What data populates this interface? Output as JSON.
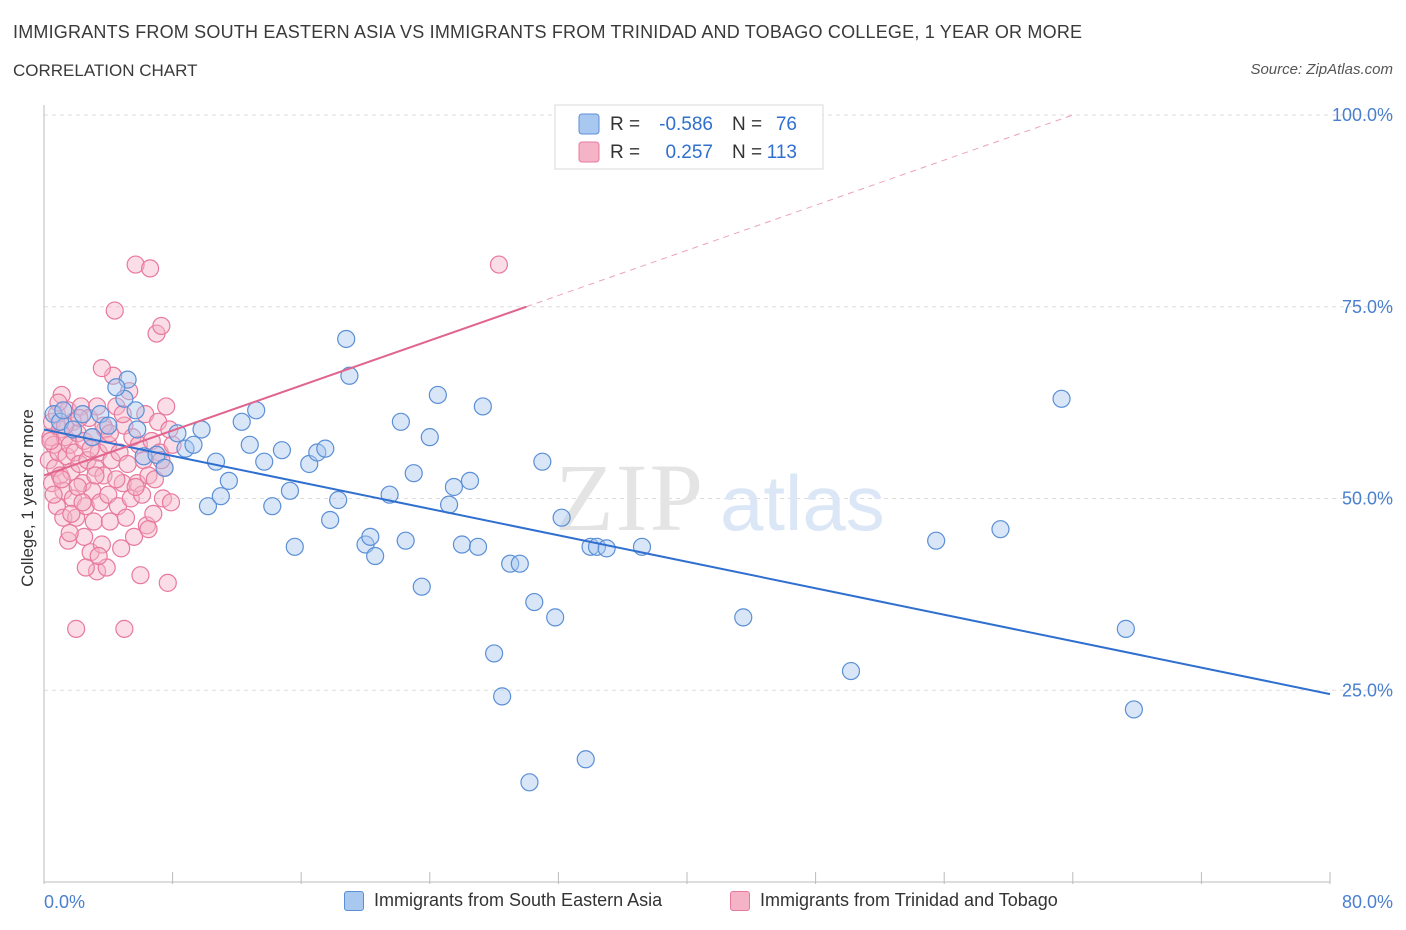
{
  "header": {
    "title": "IMMIGRANTS FROM SOUTH EASTERN ASIA VS IMMIGRANTS FROM TRINIDAD AND TOBAGO COLLEGE, 1 YEAR OR MORE",
    "subtitle": "CORRELATION CHART",
    "source": "Source: ZipAtlas.com"
  },
  "watermark": {
    "zip": "ZIP",
    "atlas": "atlas"
  },
  "colors": {
    "blue_fill": "#a9c8f0",
    "blue_stroke": "#5b8fd6",
    "blue_line": "#2f6fcf",
    "pink_fill": "#f5b3c8",
    "pink_stroke": "#e8799d",
    "pink_line": "#e0648e",
    "axis_text": "#4a7fcf",
    "grid": "#dddddd"
  },
  "chart_data": {
    "type": "scatter",
    "title": "IMMIGRANTS FROM SOUTH EASTERN ASIA VS IMMIGRANTS FROM TRINIDAD AND TOBAGO COLLEGE, 1 YEAR OR MORE",
    "xlabel": "",
    "ylabel": "College, 1 year or more",
    "xlim": [
      0,
      80
    ],
    "ylim": [
      0,
      100
    ],
    "x_tick_labels": [
      "0.0%",
      "80.0%"
    ],
    "y_ticks": [
      25,
      50,
      75,
      100
    ],
    "y_tick_labels": [
      "25.0%",
      "50.0%",
      "75.0%",
      "100.0%"
    ],
    "grid": true,
    "legend": {
      "position": "top-center",
      "entries": [
        {
          "r_label": "R =",
          "r_value": "-0.586",
          "n_label": "N =",
          "n_value": "76"
        },
        {
          "r_label": "R =",
          "r_value": "0.257",
          "n_label": "N =",
          "n_value": "113"
        }
      ]
    },
    "series": [
      {
        "name": "Immigrants from South Eastern Asia",
        "color": "#a9c8f0",
        "trend": {
          "x": [
            0,
            80
          ],
          "y": [
            59,
            24.5
          ]
        },
        "points": [
          [
            0.6,
            61
          ],
          [
            1,
            60
          ],
          [
            1.2,
            61.5
          ],
          [
            1.8,
            59
          ],
          [
            2.4,
            61
          ],
          [
            3,
            58
          ],
          [
            3.5,
            61
          ],
          [
            4,
            59.5
          ],
          [
            5,
            63
          ],
          [
            5.2,
            65.5
          ],
          [
            5.7,
            61.5
          ],
          [
            5.8,
            59
          ],
          [
            6.2,
            55.5
          ],
          [
            7,
            55.7
          ],
          [
            7.5,
            54
          ],
          [
            8.3,
            58.5
          ],
          [
            8.8,
            56.5
          ],
          [
            9.3,
            57
          ],
          [
            9.8,
            59
          ],
          [
            10.2,
            49
          ],
          [
            10.7,
            54.8
          ],
          [
            11,
            50.3
          ],
          [
            11.5,
            52.3
          ],
          [
            12.3,
            60
          ],
          [
            12.8,
            57
          ],
          [
            13.2,
            61.5
          ],
          [
            13.7,
            54.8
          ],
          [
            14.2,
            49
          ],
          [
            14.8,
            56.3
          ],
          [
            15.3,
            51
          ],
          [
            15.6,
            43.7
          ],
          [
            16.5,
            54.5
          ],
          [
            17,
            56
          ],
          [
            17.5,
            56.5
          ],
          [
            17.8,
            47.2
          ],
          [
            18.3,
            49.8
          ],
          [
            18.8,
            70.8
          ],
          [
            19,
            66
          ],
          [
            20,
            44
          ],
          [
            20.3,
            45
          ],
          [
            20.6,
            42.5
          ],
          [
            21.5,
            50.5
          ],
          [
            22.2,
            60
          ],
          [
            22.5,
            44.5
          ],
          [
            23,
            53.3
          ],
          [
            23.5,
            38.5
          ],
          [
            24,
            58
          ],
          [
            24.5,
            63.5
          ],
          [
            25.2,
            49.2
          ],
          [
            25.5,
            51.5
          ],
          [
            26,
            44
          ],
          [
            26.5,
            52.3
          ],
          [
            27,
            43.7
          ],
          [
            27.3,
            62
          ],
          [
            28,
            29.8
          ],
          [
            28.5,
            24.2
          ],
          [
            29,
            41.5
          ],
          [
            29.6,
            41.5
          ],
          [
            30.2,
            13
          ],
          [
            30.5,
            36.5
          ],
          [
            31,
            54.8
          ],
          [
            31.8,
            34.5
          ],
          [
            32.2,
            47.5
          ],
          [
            33.7,
            16
          ],
          [
            34,
            43.7
          ],
          [
            34.4,
            43.7
          ],
          [
            35,
            43.5
          ],
          [
            37.2,
            43.7
          ],
          [
            43.5,
            34.5
          ],
          [
            50.2,
            27.5
          ],
          [
            55.5,
            44.5
          ],
          [
            59.5,
            46
          ],
          [
            63.3,
            63
          ],
          [
            67.3,
            33
          ],
          [
            67.8,
            22.5
          ],
          [
            4.5,
            64.5
          ]
        ]
      },
      {
        "name": "Immigrants from Trinidad and Tobago",
        "color": "#f5b3c8",
        "trend": {
          "x": [
            0,
            30
          ],
          "y": [
            53,
            75
          ]
        },
        "trend_extension": {
          "x": [
            30,
            64
          ],
          "y": [
            75,
            100
          ]
        },
        "points": [
          [
            0.3,
            55
          ],
          [
            0.4,
            58
          ],
          [
            0.5,
            60
          ],
          [
            0.5,
            52
          ],
          [
            0.6,
            57
          ],
          [
            0.7,
            54
          ],
          [
            0.8,
            61
          ],
          [
            0.8,
            49
          ],
          [
            0.9,
            56
          ],
          [
            1,
            59
          ],
          [
            1,
            53
          ],
          [
            1.1,
            63.5
          ],
          [
            1.2,
            51
          ],
          [
            1.2,
            47.5
          ],
          [
            1.3,
            58
          ],
          [
            1.4,
            55.5
          ],
          [
            1.5,
            61.5
          ],
          [
            1.5,
            44.5
          ],
          [
            1.6,
            57
          ],
          [
            1.7,
            53.5
          ],
          [
            1.8,
            50
          ],
          [
            1.8,
            60
          ],
          [
            1.9,
            56
          ],
          [
            2,
            47.5
          ],
          [
            2,
            33
          ],
          [
            2.1,
            58.5
          ],
          [
            2.2,
            54.5
          ],
          [
            2.3,
            62
          ],
          [
            2.4,
            52
          ],
          [
            2.5,
            45
          ],
          [
            2.5,
            57.5
          ],
          [
            2.6,
            49
          ],
          [
            2.7,
            55
          ],
          [
            2.8,
            60.5
          ],
          [
            2.9,
            43
          ],
          [
            3,
            51
          ],
          [
            3,
            58
          ],
          [
            3.1,
            47
          ],
          [
            3.2,
            54
          ],
          [
            3.3,
            40.5
          ],
          [
            3.3,
            62
          ],
          [
            3.4,
            56
          ],
          [
            3.5,
            49.5
          ],
          [
            3.6,
            44
          ],
          [
            3.7,
            53
          ],
          [
            3.8,
            59
          ],
          [
            3.9,
            41
          ],
          [
            4,
            50.5
          ],
          [
            4,
            57
          ],
          [
            4.1,
            47
          ],
          [
            4.2,
            55
          ],
          [
            4.3,
            66
          ],
          [
            4.4,
            74.5
          ],
          [
            4.5,
            62
          ],
          [
            4.6,
            49
          ],
          [
            4.7,
            56
          ],
          [
            4.8,
            43.5
          ],
          [
            4.9,
            52
          ],
          [
            5,
            59.5
          ],
          [
            5,
            33
          ],
          [
            5.1,
            47.5
          ],
          [
            5.2,
            54.5
          ],
          [
            5.3,
            64
          ],
          [
            5.4,
            50
          ],
          [
            5.5,
            58
          ],
          [
            5.6,
            45
          ],
          [
            5.7,
            80.5
          ],
          [
            5.8,
            52
          ],
          [
            5.9,
            57
          ],
          [
            6,
            40
          ],
          [
            6.1,
            50.5
          ],
          [
            6.2,
            55
          ],
          [
            6.3,
            61
          ],
          [
            6.4,
            46.5
          ],
          [
            6.5,
            53
          ],
          [
            6.6,
            80
          ],
          [
            6.7,
            57.5
          ],
          [
            6.8,
            48
          ],
          [
            6.9,
            52.5
          ],
          [
            7,
            71.5
          ],
          [
            7.1,
            60
          ],
          [
            7.2,
            56
          ],
          [
            7.3,
            72.5
          ],
          [
            7.4,
            50
          ],
          [
            7.5,
            54
          ],
          [
            7.6,
            62
          ],
          [
            7.7,
            39
          ],
          [
            7.8,
            59
          ],
          [
            7.9,
            49.5
          ],
          [
            8,
            57
          ],
          [
            1.3,
            59.5
          ],
          [
            2.1,
            51.5
          ],
          [
            2.9,
            56.5
          ],
          [
            3.7,
            59.5
          ],
          [
            4.5,
            52.5
          ],
          [
            1.7,
            48
          ],
          [
            2.6,
            41
          ],
          [
            3.4,
            42.5
          ],
          [
            0.9,
            62.5
          ],
          [
            1.6,
            45.5
          ],
          [
            2.4,
            49.5
          ],
          [
            3.2,
            53
          ],
          [
            4.1,
            58.5
          ],
          [
            4.9,
            61
          ],
          [
            5.7,
            51.5
          ],
          [
            6.5,
            46
          ],
          [
            7.3,
            55
          ],
          [
            0.6,
            50.5
          ],
          [
            1.1,
            52.5
          ],
          [
            0.4,
            57.5
          ],
          [
            2.2,
            60.5
          ],
          [
            3.6,
            67
          ],
          [
            28.3,
            80.5
          ]
        ]
      }
    ]
  }
}
